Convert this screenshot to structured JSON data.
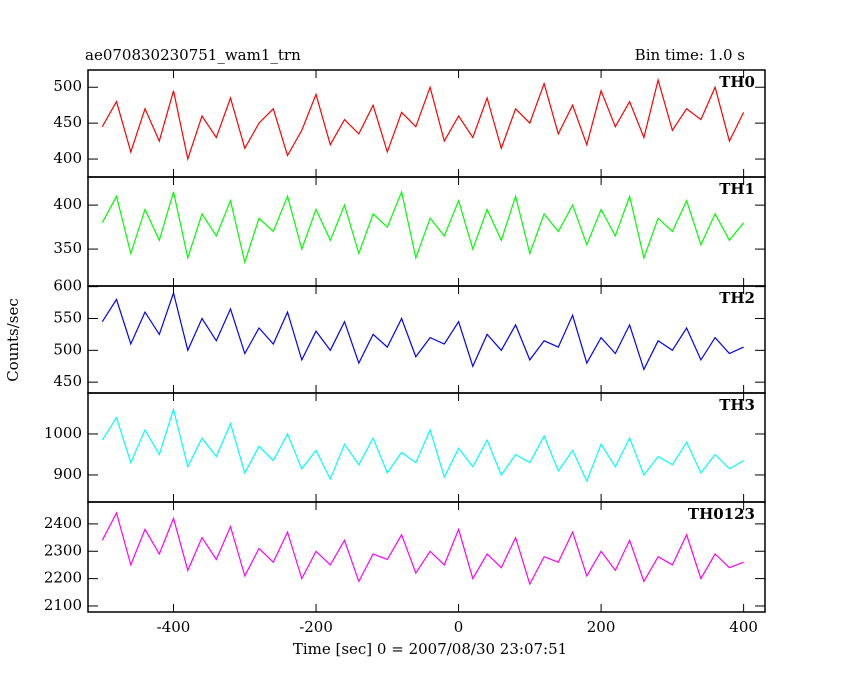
{
  "chart_data": [
    {
      "type": "line",
      "title": "ae070830230751_wam1_trn",
      "subtitle": "Bin time: 1.0 s",
      "x": [
        -500,
        -480,
        -460,
        -440,
        -420,
        -400,
        -380,
        -360,
        -340,
        -320,
        -300,
        -280,
        -260,
        -240,
        -220,
        -200,
        -180,
        -160,
        -140,
        -120,
        -100,
        -80,
        -60,
        -40,
        -20,
        0,
        20,
        40,
        60,
        80,
        100,
        120,
        140,
        160,
        180,
        200,
        220,
        240,
        260,
        280,
        300,
        320,
        340,
        360,
        380,
        400
      ],
      "series": [
        {
          "name": "TH0",
          "color": "#ff0000",
          "values": [
            445,
            480,
            410,
            470,
            425,
            495,
            400,
            460,
            430,
            485,
            415,
            450,
            470,
            405,
            440,
            490,
            420,
            455,
            435,
            475,
            410,
            465,
            445,
            500,
            425,
            460,
            430,
            485,
            415,
            470,
            450,
            505,
            435,
            475,
            420,
            495,
            445,
            480,
            430,
            510,
            440,
            470,
            455,
            500,
            425,
            465
          ]
        }
      ],
      "xlim": [
        -520,
        430
      ],
      "ylim": [
        375,
        524
      ],
      "yticks": [
        400,
        450,
        500
      ]
    },
    {
      "type": "line",
      "x": [
        -500,
        -480,
        -460,
        -440,
        -420,
        -400,
        -380,
        -360,
        -340,
        -320,
        -300,
        -280,
        -260,
        -240,
        -220,
        -200,
        -180,
        -160,
        -140,
        -120,
        -100,
        -80,
        -60,
        -40,
        -20,
        0,
        20,
        40,
        60,
        80,
        100,
        120,
        140,
        160,
        180,
        200,
        220,
        240,
        260,
        280,
        300,
        320,
        340,
        360,
        380,
        400
      ],
      "series": [
        {
          "name": "TH1",
          "color": "#00ff00",
          "values": [
            380,
            410,
            345,
            395,
            360,
            415,
            340,
            390,
            365,
            405,
            335,
            385,
            370,
            410,
            350,
            395,
            360,
            400,
            345,
            390,
            375,
            415,
            340,
            385,
            365,
            405,
            350,
            395,
            360,
            410,
            345,
            390,
            370,
            400,
            355,
            395,
            365,
            410,
            340,
            385,
            370,
            405,
            355,
            390,
            360,
            380
          ]
        }
      ],
      "xlim": [
        -520,
        430
      ],
      "ylim": [
        308,
        432
      ],
      "yticks": [
        350,
        400
      ]
    },
    {
      "type": "line",
      "ylabel": "Counts/sec",
      "x": [
        -500,
        -480,
        -460,
        -440,
        -420,
        -400,
        -380,
        -360,
        -340,
        -320,
        -300,
        -280,
        -260,
        -240,
        -220,
        -200,
        -180,
        -160,
        -140,
        -120,
        -100,
        -80,
        -60,
        -40,
        -20,
        0,
        20,
        40,
        60,
        80,
        100,
        120,
        140,
        160,
        180,
        200,
        220,
        240,
        260,
        280,
        300,
        320,
        340,
        360,
        380,
        400
      ],
      "series": [
        {
          "name": "TH2",
          "color": "#0000ff",
          "values": [
            545,
            580,
            510,
            560,
            525,
            590,
            500,
            550,
            515,
            565,
            495,
            535,
            510,
            560,
            485,
            530,
            500,
            545,
            480,
            525,
            505,
            550,
            490,
            520,
            510,
            545,
            475,
            525,
            500,
            540,
            485,
            515,
            505,
            555,
            480,
            520,
            495,
            540,
            470,
            515,
            500,
            535,
            485,
            520,
            495,
            505
          ]
        }
      ],
      "xlim": [
        -520,
        430
      ],
      "ylim": [
        433,
        601
      ],
      "yticks": [
        450,
        500,
        550,
        600
      ]
    },
    {
      "type": "line",
      "x": [
        -500,
        -480,
        -460,
        -440,
        -420,
        -400,
        -380,
        -360,
        -340,
        -320,
        -300,
        -280,
        -260,
        -240,
        -220,
        -200,
        -180,
        -160,
        -140,
        -120,
        -100,
        -80,
        -60,
        -40,
        -20,
        0,
        20,
        40,
        60,
        80,
        100,
        120,
        140,
        160,
        180,
        200,
        220,
        240,
        260,
        280,
        300,
        320,
        340,
        360,
        380,
        400
      ],
      "series": [
        {
          "name": "TH3",
          "color": "#00ffff",
          "values": [
            985,
            1040,
            930,
            1010,
            950,
            1060,
            920,
            990,
            945,
            1025,
            905,
            970,
            935,
            1000,
            915,
            960,
            890,
            975,
            925,
            990,
            905,
            955,
            930,
            1010,
            895,
            965,
            920,
            985,
            900,
            950,
            930,
            995,
            910,
            960,
            885,
            975,
            920,
            990,
            900,
            945,
            925,
            980,
            905,
            950,
            915,
            935
          ]
        }
      ],
      "xlim": [
        -520,
        430
      ],
      "ylim": [
        834,
        1100
      ],
      "yticks": [
        900,
        1000
      ]
    },
    {
      "type": "line",
      "xlabel": "Time [sec] 0 = 2007/08/30 23:07:51",
      "x": [
        -500,
        -480,
        -460,
        -440,
        -420,
        -400,
        -380,
        -360,
        -340,
        -320,
        -300,
        -280,
        -260,
        -240,
        -220,
        -200,
        -180,
        -160,
        -140,
        -120,
        -100,
        -80,
        -60,
        -40,
        -20,
        0,
        20,
        40,
        60,
        80,
        100,
        120,
        140,
        160,
        180,
        200,
        220,
        240,
        260,
        280,
        300,
        320,
        340,
        360,
        380,
        400
      ],
      "series": [
        {
          "name": "TH0123",
          "color": "#ff00ff",
          "values": [
            2340,
            2440,
            2250,
            2380,
            2290,
            2420,
            2230,
            2350,
            2270,
            2390,
            2210,
            2310,
            2260,
            2370,
            2200,
            2300,
            2250,
            2340,
            2190,
            2290,
            2270,
            2360,
            2220,
            2300,
            2250,
            2380,
            2200,
            2290,
            2240,
            2350,
            2180,
            2280,
            2260,
            2370,
            2210,
            2300,
            2230,
            2340,
            2190,
            2280,
            2250,
            2360,
            2200,
            2290,
            2240,
            2260
          ]
        }
      ],
      "xlim": [
        -520,
        430
      ],
      "ylim": [
        2078,
        2480
      ],
      "yticks": [
        2100,
        2200,
        2300,
        2400
      ],
      "xticks": [
        -400,
        -200,
        0,
        200,
        400
      ]
    }
  ]
}
